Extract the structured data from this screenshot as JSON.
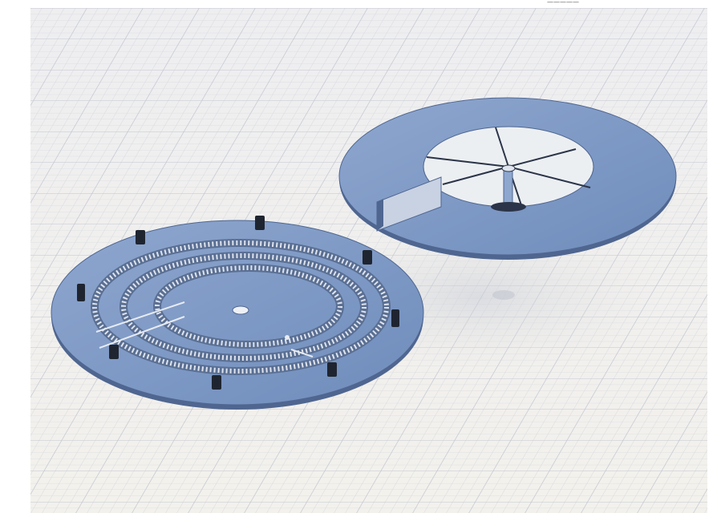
{
  "app": {
    "status_readout": "—————"
  },
  "viewport": {
    "background_color": "#f2f0ea",
    "grid_color": "#c8ccd6",
    "model_color": "#7f9cc7",
    "model_shadow_color": "#5c739a"
  },
  "parts": {
    "base_plate": {
      "icon": "gear-track-plate",
      "mounting_posts": 8,
      "concentric_tracks": 3
    },
    "top_ring": {
      "icon": "spoked-ring",
      "spokes": 6
    }
  }
}
